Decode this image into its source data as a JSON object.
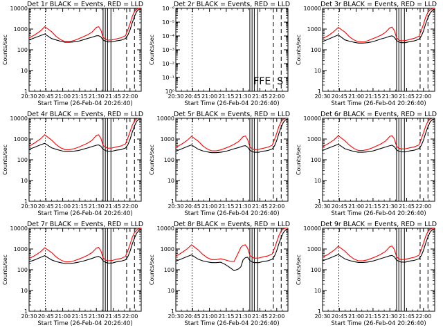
{
  "window": {
    "background": "#ffffff"
  },
  "colors": {
    "events": "#000000",
    "lld": "#ff0000",
    "axes": "#000000"
  },
  "x_time_labels": [
    "20:30",
    "20:45",
    "21:00",
    "21:15",
    "21:30",
    "21:45",
    "22:00"
  ],
  "x_time_values_min": [
    0,
    15,
    30,
    45,
    60,
    75,
    90
  ],
  "x_range_min": [
    0,
    100
  ],
  "xlabel": "Start Time (26-Feb-04 20:26:40)",
  "ylabel": "Counts/sec",
  "marker_times_min": {
    "dotted": [
      14.5
    ],
    "solid": [
      66,
      68,
      70,
      73
    ],
    "dashed": [
      87,
      94
    ]
  },
  "chart_data": [
    {
      "id": "det1",
      "title": "Det 1r BLACK = Events, RED = LLD",
      "type": "line",
      "yscale": "log",
      "ylim": [
        1,
        10000
      ],
      "ytick_labels": [
        "1",
        "10",
        "100",
        "1000",
        "10000"
      ],
      "x": [
        0,
        5,
        10,
        14,
        20,
        24,
        28,
        32,
        36,
        40,
        44,
        48,
        52,
        56,
        60,
        62,
        64,
        66,
        68,
        70,
        74,
        78,
        82,
        86,
        88,
        90,
        92,
        94,
        96,
        98,
        100
      ],
      "series": [
        {
          "name": "Events",
          "color": "#000000",
          "values": [
            300,
            380,
            480,
            580,
            350,
            300,
            260,
            230,
            230,
            240,
            260,
            300,
            350,
            400,
            470,
            480,
            420,
            300,
            260,
            240,
            240,
            270,
            290,
            350,
            500,
            900,
            2000,
            4000,
            7000,
            9000,
            9500
          ]
        },
        {
          "name": "LLD",
          "color": "#ff0000",
          "values": [
            380,
            520,
            800,
            1300,
            750,
            450,
            310,
            250,
            250,
            280,
            340,
            420,
            520,
            700,
            1200,
            1300,
            900,
            400,
            320,
            290,
            300,
            340,
            380,
            480,
            900,
            1800,
            4000,
            7000,
            9000,
            10000,
            10000
          ]
        }
      ]
    },
    {
      "id": "det2",
      "title": "Det 2r BLACK = Events, RED = LLD",
      "type": "line",
      "yscale": "log",
      "ylim": [
        1,
        1e-06
      ],
      "ytick_labels": [
        "10⁰",
        "10⁻¹",
        "10⁻²",
        "10⁻³",
        "10⁻⁴",
        "10⁻⁵",
        "10⁻⁶"
      ],
      "x": [],
      "series": [],
      "annotations": [
        "FFE",
        "S"
      ]
    },
    {
      "id": "det3",
      "title": "Det 3r BLACK = Events, RED = LLD",
      "type": "line",
      "yscale": "log",
      "ylim": [
        1,
        10000
      ],
      "ytick_labels": [
        "1",
        "10",
        "100",
        "1000",
        "10000"
      ],
      "x": [
        0,
        5,
        10,
        14,
        20,
        24,
        28,
        32,
        36,
        40,
        44,
        48,
        52,
        56,
        60,
        62,
        64,
        66,
        68,
        70,
        74,
        78,
        82,
        86,
        88,
        90,
        92,
        94,
        96,
        98,
        100
      ],
      "series": [
        {
          "name": "Events",
          "color": "#000000",
          "values": [
            250,
            320,
            420,
            520,
            300,
            260,
            230,
            210,
            210,
            220,
            240,
            280,
            330,
            380,
            450,
            470,
            400,
            280,
            240,
            220,
            220,
            250,
            270,
            320,
            450,
            800,
            1800,
            3500,
            6000,
            8000,
            9000
          ]
        },
        {
          "name": "LLD",
          "color": "#ff0000",
          "values": [
            350,
            480,
            750,
            1200,
            700,
            420,
            300,
            240,
            240,
            270,
            330,
            400,
            500,
            680,
            1150,
            1250,
            850,
            380,
            300,
            270,
            280,
            320,
            360,
            450,
            850,
            1700,
            3800,
            6500,
            8500,
            9800,
            10000
          ]
        }
      ]
    },
    {
      "id": "det4",
      "title": "Det 4r BLACK = Events, RED = LLD",
      "type": "line",
      "yscale": "log",
      "ylim": [
        1,
        10000
      ],
      "ytick_labels": [
        "1",
        "10",
        "100",
        "1000",
        "10000"
      ],
      "x": [
        0,
        5,
        10,
        14,
        20,
        24,
        28,
        32,
        36,
        40,
        44,
        48,
        52,
        56,
        60,
        62,
        64,
        66,
        68,
        70,
        74,
        78,
        82,
        86,
        88,
        90,
        92,
        94,
        96,
        98,
        100
      ],
      "series": [
        {
          "name": "Events",
          "color": "#000000",
          "values": [
            320,
            400,
            520,
            620,
            380,
            320,
            280,
            250,
            250,
            260,
            280,
            320,
            370,
            430,
            500,
            520,
            450,
            320,
            280,
            260,
            260,
            290,
            310,
            370,
            520,
            950,
            2100,
            4200,
            7200,
            9200,
            9800
          ]
        },
        {
          "name": "LLD",
          "color": "#ff0000",
          "values": [
            450,
            650,
            1000,
            1600,
            900,
            550,
            380,
            310,
            310,
            340,
            400,
            500,
            620,
            850,
            1500,
            1600,
            1100,
            500,
            400,
            360,
            370,
            420,
            460,
            580,
            1100,
            2200,
            4500,
            7500,
            9500,
            10000,
            10000
          ]
        }
      ]
    },
    {
      "id": "det5",
      "title": "Det 5r BLACK = Events, RED = LLD",
      "type": "line",
      "yscale": "log",
      "ylim": [
        1,
        10000
      ],
      "ytick_labels": [
        "1",
        "10",
        "100",
        "1000",
        "10000"
      ],
      "x": [
        0,
        5,
        10,
        14,
        20,
        24,
        28,
        32,
        36,
        40,
        44,
        48,
        52,
        56,
        60,
        62,
        64,
        66,
        68,
        70,
        74,
        78,
        82,
        86,
        88,
        90,
        92,
        94,
        96,
        98,
        100
      ],
      "series": [
        {
          "name": "Events",
          "color": "#000000",
          "values": [
            260,
            330,
            430,
            520,
            320,
            270,
            240,
            220,
            220,
            230,
            250,
            290,
            340,
            390,
            460,
            480,
            410,
            290,
            250,
            230,
            230,
            260,
            280,
            330,
            470,
            850,
            1900,
            3800,
            6500,
            8500,
            9300
          ]
        },
        {
          "name": "LLD",
          "color": "#ff0000",
          "values": [
            400,
            560,
            850,
            1350,
            780,
            470,
            330,
            270,
            270,
            300,
            360,
            440,
            560,
            760,
            1300,
            1400,
            950,
            430,
            340,
            310,
            320,
            360,
            400,
            500,
            950,
            1900,
            4100,
            7000,
            9000,
            9900,
            10000
          ]
        }
      ]
    },
    {
      "id": "det6",
      "title": "Det 6r BLACK = Events, RED = LLD",
      "type": "line",
      "yscale": "log",
      "ylim": [
        1,
        10000
      ],
      "ytick_labels": [
        "1",
        "10",
        "100",
        "1000",
        "10000"
      ],
      "x": [
        0,
        5,
        10,
        14,
        20,
        24,
        28,
        32,
        36,
        40,
        44,
        48,
        52,
        56,
        60,
        62,
        64,
        66,
        68,
        70,
        74,
        78,
        82,
        86,
        88,
        90,
        92,
        94,
        96,
        98,
        100
      ],
      "series": [
        {
          "name": "Events",
          "color": "#000000",
          "values": [
            280,
            360,
            460,
            560,
            340,
            290,
            250,
            230,
            230,
            240,
            260,
            300,
            350,
            410,
            480,
            500,
            430,
            300,
            260,
            240,
            240,
            270,
            290,
            350,
            490,
            880,
            1950,
            3900,
            6700,
            8700,
            9500
          ]
        },
        {
          "name": "LLD",
          "color": "#ff0000",
          "values": [
            420,
            600,
            900,
            1450,
            820,
            500,
            350,
            280,
            280,
            310,
            370,
            460,
            580,
            790,
            1350,
            1450,
            1000,
            450,
            360,
            330,
            340,
            380,
            420,
            520,
            1000,
            2000,
            4200,
            7200,
            9200,
            10000,
            10000
          ]
        }
      ]
    },
    {
      "id": "det7",
      "title": "Det 7r BLACK = Events, RED = LLD",
      "type": "line",
      "yscale": "log",
      "ylim": [
        1,
        10000
      ],
      "ytick_labels": [
        "1",
        "10",
        "100",
        "1000",
        "10000"
      ],
      "x": [
        0,
        5,
        10,
        14,
        20,
        24,
        28,
        32,
        36,
        40,
        44,
        48,
        52,
        56,
        60,
        62,
        64,
        66,
        68,
        70,
        74,
        78,
        82,
        86,
        88,
        90,
        92,
        94,
        96,
        98,
        100
      ],
      "series": [
        {
          "name": "Events",
          "color": "#000000",
          "values": [
            240,
            300,
            390,
            480,
            300,
            250,
            220,
            200,
            200,
            210,
            230,
            260,
            300,
            350,
            420,
            440,
            380,
            270,
            230,
            210,
            210,
            240,
            260,
            300,
            420,
            760,
            1700,
            3400,
            5800,
            7800,
            8800
          ]
        },
        {
          "name": "LLD",
          "color": "#ff0000",
          "values": [
            350,
            480,
            720,
            1150,
            680,
            420,
            300,
            240,
            240,
            270,
            320,
            390,
            490,
            660,
            1100,
            1200,
            820,
            380,
            300,
            270,
            280,
            320,
            350,
            440,
            820,
            1650,
            3600,
            6200,
            8200,
            9500,
            10000
          ]
        }
      ]
    },
    {
      "id": "det8",
      "title": "Det 8r BLACK = Events, RED = LLD",
      "type": "line",
      "yscale": "log",
      "ylim": [
        1,
        10000
      ],
      "ytick_labels": [
        "1",
        "10",
        "100",
        "1000",
        "10000"
      ],
      "x": [
        0,
        5,
        10,
        14,
        20,
        24,
        28,
        32,
        36,
        40,
        44,
        48,
        52,
        56,
        58,
        60,
        62,
        64,
        66,
        68,
        70,
        74,
        78,
        82,
        86,
        88,
        90,
        92,
        94,
        96,
        98,
        100
      ],
      "series": [
        {
          "name": "Events",
          "color": "#000000",
          "values": [
            260,
            330,
            430,
            520,
            320,
            270,
            240,
            220,
            220,
            230,
            180,
            130,
            90,
            110,
            140,
            300,
            380,
            400,
            280,
            240,
            220,
            220,
            250,
            270,
            320,
            460,
            830,
            1850,
            3700,
            6300,
            8300,
            9200
          ]
        },
        {
          "name": "LLD",
          "color": "#ff0000",
          "values": [
            450,
            650,
            1000,
            1600,
            900,
            550,
            380,
            310,
            310,
            340,
            300,
            260,
            250,
            700,
            1200,
            1500,
            1600,
            1100,
            500,
            400,
            360,
            370,
            420,
            460,
            580,
            1100,
            2200,
            4500,
            7500,
            9500,
            10000,
            10000
          ]
        }
      ]
    },
    {
      "id": "det9",
      "title": "Det 9r BLACK = Events, RED = LLD",
      "type": "line",
      "yscale": "log",
      "ylim": [
        1,
        10000
      ],
      "ytick_labels": [
        "1",
        "10",
        "100",
        "1000",
        "10000"
      ],
      "x": [
        0,
        5,
        10,
        14,
        20,
        24,
        28,
        32,
        36,
        40,
        44,
        48,
        52,
        56,
        60,
        62,
        64,
        66,
        68,
        70,
        74,
        78,
        82,
        86,
        88,
        90,
        92,
        94,
        96,
        98,
        100
      ],
      "series": [
        {
          "name": "Events",
          "color": "#000000",
          "values": [
            270,
            340,
            440,
            540,
            330,
            280,
            245,
            225,
            225,
            235,
            255,
            295,
            345,
            400,
            470,
            490,
            420,
            295,
            255,
            235,
            235,
            265,
            285,
            340,
            480,
            860,
            1900,
            3850,
            6600,
            8600,
            9400
          ]
        },
        {
          "name": "LLD",
          "color": "#ff0000",
          "values": [
            400,
            560,
            850,
            1350,
            780,
            470,
            330,
            270,
            270,
            300,
            360,
            440,
            560,
            760,
            1300,
            1400,
            950,
            430,
            340,
            310,
            320,
            360,
            400,
            500,
            950,
            1900,
            4100,
            7000,
            9000,
            9900,
            10000
          ]
        }
      ]
    }
  ]
}
